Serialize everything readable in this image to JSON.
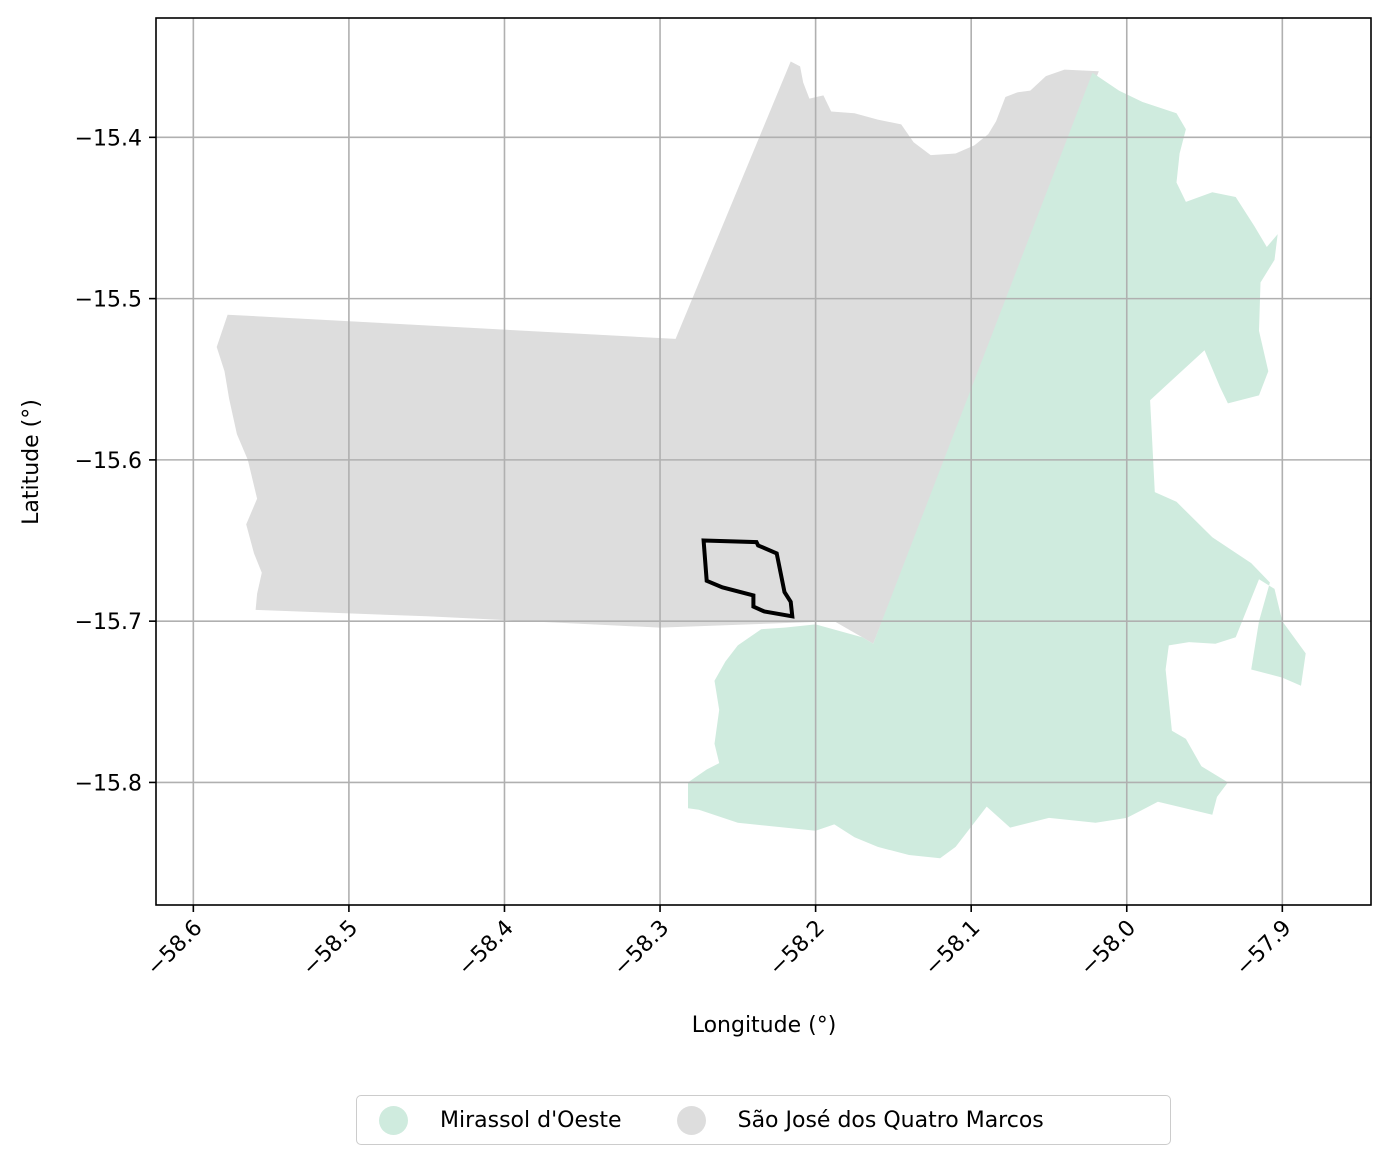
{
  "chart_data": {
    "type": "map",
    "xlabel": "Longitude (°)",
    "ylabel": "Latitude (°)",
    "xlim": [
      -58.624,
      -57.843
    ],
    "ylim": [
      -15.876,
      -15.326
    ],
    "xticks": [
      -58.6,
      -58.5,
      -58.4,
      -58.3,
      -58.2,
      -58.1,
      -58.0,
      -57.9
    ],
    "xtick_labels": [
      "−58.6",
      "−58.5",
      "−58.4",
      "−58.3",
      "−58.2",
      "−58.1",
      "−58.0",
      "−57.9"
    ],
    "yticks": [
      -15.4,
      -15.5,
      -15.6,
      -15.7,
      -15.8
    ],
    "ytick_labels": [
      "−15.4",
      "−15.5",
      "−15.6",
      "−15.7",
      "−15.8"
    ],
    "grid": true,
    "legend_position": "bottom-center",
    "legend": [
      {
        "label": "Mirassol d'Oeste",
        "color": "#cfebde"
      },
      {
        "label": "São José dos Quatro Marcos",
        "color": "#dddddd"
      }
    ],
    "regions": [
      {
        "name": "São José dos Quatro Marcos",
        "color": "#dddddd",
        "polygon": [
          [
            -58.216,
            -15.353
          ],
          [
            -58.21,
            -15.356
          ],
          [
            -58.208,
            -15.366
          ],
          [
            -58.204,
            -15.376
          ],
          [
            -58.195,
            -15.374
          ],
          [
            -58.19,
            -15.384
          ],
          [
            -58.175,
            -15.385
          ],
          [
            -58.16,
            -15.389
          ],
          [
            -58.145,
            -15.392
          ],
          [
            -58.137,
            -15.403
          ],
          [
            -58.126,
            -15.411
          ],
          [
            -58.11,
            -15.41
          ],
          [
            -58.098,
            -15.405
          ],
          [
            -58.089,
            -15.398
          ],
          [
            -58.084,
            -15.39
          ],
          [
            -58.078,
            -15.375
          ],
          [
            -58.07,
            -15.372
          ],
          [
            -58.062,
            -15.371
          ],
          [
            -58.052,
            -15.362
          ],
          [
            -58.04,
            -15.358
          ],
          [
            -58.018,
            -15.359
          ],
          [
            -58.163,
            -15.714
          ],
          [
            -58.17,
            -15.71
          ],
          [
            -58.188,
            -15.7
          ],
          [
            -58.3,
            -15.704
          ],
          [
            -58.45,
            -15.697
          ],
          [
            -58.56,
            -15.693
          ],
          [
            -58.559,
            -15.683
          ],
          [
            -58.556,
            -15.67
          ],
          [
            -58.561,
            -15.658
          ],
          [
            -58.566,
            -15.64
          ],
          [
            -58.559,
            -15.624
          ],
          [
            -58.565,
            -15.6
          ],
          [
            -58.572,
            -15.584
          ],
          [
            -58.577,
            -15.562
          ],
          [
            -58.58,
            -15.545
          ],
          [
            -58.585,
            -15.53
          ],
          [
            -58.578,
            -15.51
          ],
          [
            -58.29,
            -15.525
          ]
        ]
      },
      {
        "name": "Mirassol d'Oeste",
        "color": "#cfebde",
        "polygon": [
          [
            -58.022,
            -15.36
          ],
          [
            -58.005,
            -15.371
          ],
          [
            -57.99,
            -15.378
          ],
          [
            -57.968,
            -15.385
          ],
          [
            -57.962,
            -15.395
          ],
          [
            -57.966,
            -15.41
          ],
          [
            -57.968,
            -15.428
          ],
          [
            -57.962,
            -15.44
          ],
          [
            -57.945,
            -15.434
          ],
          [
            -57.93,
            -15.437
          ],
          [
            -57.918,
            -15.455
          ],
          [
            -57.91,
            -15.468
          ],
          [
            -57.903,
            -15.46
          ],
          [
            -57.905,
            -15.476
          ],
          [
            -57.914,
            -15.49
          ],
          [
            -57.915,
            -15.52
          ],
          [
            -57.909,
            -15.545
          ],
          [
            -57.915,
            -15.56
          ],
          [
            -57.935,
            -15.565
          ],
          [
            -57.94,
            -15.555
          ],
          [
            -57.95,
            -15.532
          ],
          [
            -57.985,
            -15.563
          ],
          [
            -57.982,
            -15.62
          ],
          [
            -57.968,
            -15.626
          ],
          [
            -57.945,
            -15.648
          ],
          [
            -57.92,
            -15.664
          ],
          [
            -57.908,
            -15.676
          ],
          [
            -57.915,
            -15.7
          ],
          [
            -57.92,
            -15.73
          ],
          [
            -57.9,
            -15.735
          ],
          [
            -57.888,
            -15.74
          ],
          [
            -57.885,
            -15.72
          ],
          [
            -57.9,
            -15.7
          ],
          [
            -57.905,
            -15.68
          ],
          [
            -57.915,
            -15.674
          ],
          [
            -57.93,
            -15.71
          ],
          [
            -57.943,
            -15.714
          ],
          [
            -57.96,
            -15.713
          ],
          [
            -57.973,
            -15.715
          ],
          [
            -57.975,
            -15.73
          ],
          [
            -57.971,
            -15.768
          ],
          [
            -57.962,
            -15.773
          ],
          [
            -57.952,
            -15.79
          ],
          [
            -57.935,
            -15.8
          ],
          [
            -57.942,
            -15.809
          ],
          [
            -57.945,
            -15.82
          ],
          [
            -57.98,
            -15.812
          ],
          [
            -58.0,
            -15.822
          ],
          [
            -58.02,
            -15.825
          ],
          [
            -58.05,
            -15.822
          ],
          [
            -58.075,
            -15.828
          ],
          [
            -58.09,
            -15.815
          ],
          [
            -58.11,
            -15.84
          ],
          [
            -58.12,
            -15.847
          ],
          [
            -58.14,
            -15.845
          ],
          [
            -58.16,
            -15.84
          ],
          [
            -58.175,
            -15.834
          ],
          [
            -58.188,
            -15.826
          ],
          [
            -58.2,
            -15.83
          ],
          [
            -58.25,
            -15.825
          ],
          [
            -58.275,
            -15.817
          ],
          [
            -58.282,
            -15.816
          ],
          [
            -58.282,
            -15.8
          ],
          [
            -58.27,
            -15.792
          ],
          [
            -58.262,
            -15.788
          ],
          [
            -58.265,
            -15.776
          ],
          [
            -58.262,
            -15.755
          ],
          [
            -58.265,
            -15.737
          ],
          [
            -58.258,
            -15.725
          ],
          [
            -58.25,
            -15.715
          ],
          [
            -58.235,
            -15.705
          ],
          [
            -58.22,
            -15.704
          ],
          [
            -58.2,
            -15.702
          ],
          [
            -58.17,
            -15.71
          ],
          [
            -58.163,
            -15.714
          ]
        ]
      }
    ],
    "outline_polygon": [
      [
        -58.272,
        -15.65
      ],
      [
        -58.238,
        -15.651
      ],
      [
        -58.237,
        -15.653
      ],
      [
        -58.225,
        -15.658
      ],
      [
        -58.22,
        -15.682
      ],
      [
        -58.216,
        -15.688
      ],
      [
        -58.215,
        -15.697
      ],
      [
        -58.233,
        -15.694
      ],
      [
        -58.24,
        -15.691
      ],
      [
        -58.24,
        -15.684
      ],
      [
        -58.26,
        -15.679
      ],
      [
        -58.27,
        -15.675
      ]
    ]
  }
}
